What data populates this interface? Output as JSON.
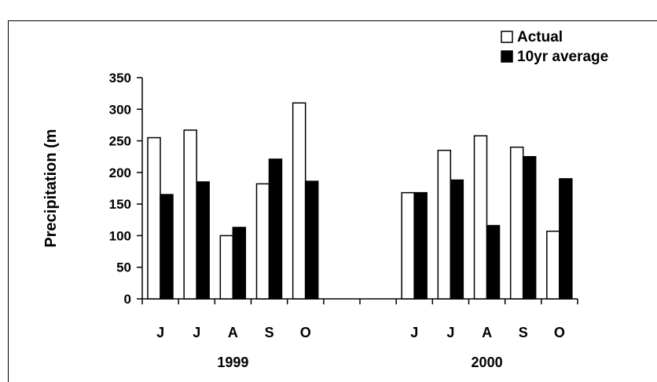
{
  "chart_data": {
    "type": "bar",
    "ylabel": "Precipitation (m",
    "ylim": [
      0,
      350
    ],
    "yticks": [
      "0",
      "50",
      "100",
      "150",
      "200",
      "250",
      "300",
      "350"
    ],
    "grid": false,
    "legend_position": "top-right",
    "groups": [
      {
        "label": "1999",
        "months": [
          "J",
          "J",
          "A",
          "S",
          "O"
        ]
      },
      {
        "label": "2000",
        "months": [
          "J",
          "J",
          "A",
          "S",
          "O"
        ]
      }
    ],
    "series": [
      {
        "name": "Actual",
        "color": "#ffffff",
        "values": [
          [
            255,
            267,
            100,
            182,
            310
          ],
          [
            168,
            235,
            258,
            240,
            107
          ]
        ]
      },
      {
        "name": "10yr average",
        "color": "#000000",
        "values": [
          [
            165,
            185,
            113,
            221,
            186
          ],
          [
            168,
            188,
            116,
            225,
            190
          ]
        ]
      }
    ]
  }
}
